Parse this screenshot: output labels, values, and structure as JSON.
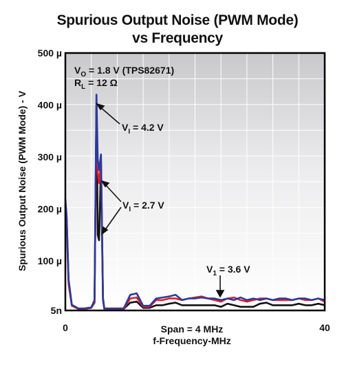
{
  "chart_data": {
    "type": "line",
    "title": "Spurious Output Noise (PWM Mode)",
    "subtitle": "vs Frequency",
    "ylabel": "Spurious Output Noise (PWM Mode) - V",
    "xlabel_line1": "Span = 4 MHz",
    "xlabel_line2": "f-Frequency-MHz",
    "xlim": [
      0,
      40
    ],
    "ylim_uV": [
      5,
      500
    ],
    "x_ticks": [
      {
        "value": 0,
        "label": "0"
      },
      {
        "value": 40,
        "label": "40"
      }
    ],
    "y_ticks": [
      {
        "value": 5,
        "label": "5n"
      },
      {
        "value": 100,
        "label": "100 µ"
      },
      {
        "value": 200,
        "label": "200 µ"
      },
      {
        "value": 300,
        "label": "300 µ"
      },
      {
        "value": 400,
        "label": "400 µ"
      },
      {
        "value": 500,
        "label": "500 µ"
      }
    ],
    "grid": true,
    "conditions": {
      "line1_main": "V",
      "line1_sub": "O",
      "line1_rest": " = 1.8 V (TPS82671)",
      "line2_main": "R",
      "line2_sub": "L",
      "line2_rest": " = 12 Ω"
    },
    "annotations": [
      {
        "main": "V",
        "sub": "I",
        "rest": " = 4.2 V"
      },
      {
        "main": "V",
        "sub": "I",
        "rest": " = 2.7 V"
      },
      {
        "main": "V",
        "sub": "1",
        "rest": " = 3.6 V"
      }
    ],
    "series": [
      {
        "color": "#111111",
        "x": [
          0,
          0.2,
          0.5,
          1,
          2,
          3,
          4,
          4.5,
          4.8,
          5,
          5.2,
          5.5,
          5.8,
          6,
          6.5,
          7,
          8,
          9,
          10,
          11,
          12,
          13,
          14,
          15,
          16,
          17,
          18,
          19,
          20,
          21,
          22,
          23,
          24,
          25,
          26,
          27,
          28,
          29,
          30,
          31,
          32,
          33,
          34,
          35,
          36,
          37,
          38,
          39,
          40
        ],
        "y": [
          210,
          180,
          60,
          15,
          8,
          8,
          10,
          20,
          395,
          150,
          140,
          285,
          25,
          8,
          8,
          8,
          8,
          8,
          20,
          22,
          10,
          10,
          15,
          15,
          18,
          20,
          15,
          15,
          15,
          15,
          15,
          15,
          12,
          18,
          15,
          12,
          12,
          12,
          18,
          20,
          15,
          15,
          15,
          15,
          18,
          15,
          15,
          18,
          15
        ]
      },
      {
        "color": "#e01e26",
        "x": [
          0,
          0.2,
          0.5,
          1,
          2,
          3,
          4,
          4.5,
          4.8,
          5,
          5.2,
          5.5,
          5.8,
          6,
          6.5,
          7,
          8,
          9,
          10,
          11,
          12,
          13,
          14,
          15,
          16,
          17,
          18,
          19,
          20,
          21,
          22,
          23,
          24,
          25,
          26,
          27,
          28,
          29,
          30,
          31,
          32,
          33,
          34,
          35,
          36,
          37,
          38,
          39,
          40
        ],
        "y": [
          205,
          170,
          55,
          14,
          8,
          8,
          10,
          22,
          400,
          270,
          250,
          290,
          28,
          8,
          8,
          8,
          8,
          8,
          28,
          30,
          12,
          12,
          25,
          25,
          28,
          28,
          25,
          28,
          30,
          32,
          28,
          25,
          22,
          28,
          30,
          25,
          22,
          25,
          28,
          28,
          25,
          25,
          25,
          25,
          28,
          25,
          25,
          28,
          22
        ]
      },
      {
        "color": "#2b3a9c",
        "x": [
          0,
          0.2,
          0.5,
          1,
          2,
          3,
          4,
          4.5,
          4.8,
          5,
          5.2,
          5.5,
          5.8,
          6,
          6.5,
          7,
          8,
          9,
          10,
          11,
          12,
          13,
          14,
          15,
          16,
          17,
          18,
          19,
          20,
          21,
          22,
          23,
          24,
          25,
          26,
          27,
          28,
          29,
          30,
          31,
          32,
          33,
          34,
          35,
          36,
          37,
          38,
          39,
          40
        ],
        "y": [
          220,
          185,
          65,
          16,
          9,
          9,
          11,
          25,
          420,
          295,
          275,
          305,
          30,
          9,
          9,
          9,
          9,
          9,
          35,
          38,
          14,
          14,
          28,
          30,
          32,
          35,
          25,
          28,
          28,
          30,
          28,
          28,
          25,
          28,
          25,
          30,
          25,
          28,
          25,
          28,
          25,
          28,
          28,
          25,
          28,
          28,
          25,
          28,
          25
        ]
      }
    ]
  }
}
